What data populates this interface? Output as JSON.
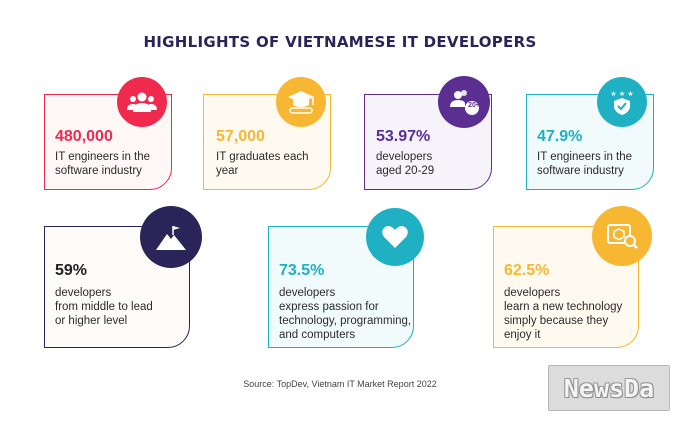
{
  "title": "HIGHLIGHTS OF VIETNAMESE IT DEVELOPERS",
  "cards": [
    {
      "value": "480,000",
      "lines": [
        "IT engineers in the",
        "software industry"
      ],
      "accent": "#f0294f",
      "icon": "people-group-icon"
    },
    {
      "value": "57,000",
      "lines": [
        "IT graduates each",
        "year"
      ],
      "accent": "#f7b733",
      "icon": "graduation-diploma-icon"
    },
    {
      "value": "53.97%",
      "lines": [
        "developers",
        "aged 20-29"
      ],
      "accent": "#5b2e91",
      "icon": "people-age-icon",
      "badge": "20+"
    },
    {
      "value": "47.9%",
      "lines": [
        "IT engineers in the",
        "software industry"
      ],
      "accent": "#1fb1c3",
      "icon": "shield-stars-icon"
    },
    {
      "value": "59%",
      "lines": [
        "developers",
        "from middle to lead",
        "or higher level"
      ],
      "accent": "#2a2458",
      "icon": "mountain-flag-icon"
    },
    {
      "value": "73.5%",
      "lines": [
        "developers",
        "express passion for",
        "technology, programming,",
        "and computers"
      ],
      "accent": "#1fb1c3",
      "icon": "heart-icon"
    },
    {
      "value": "62.5%",
      "lines": [
        "developers",
        "learn a new technology",
        "simply because they",
        "enjoy it"
      ],
      "accent": "#f7b733",
      "icon": "cube-search-icon"
    }
  ],
  "source": "Source: TopDev, Vietnam IT Market Report 2022",
  "watermark": "NewsDa"
}
